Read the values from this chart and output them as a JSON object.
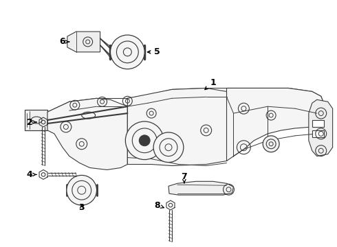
{
  "background_color": "#ffffff",
  "line_color": "#3a3a3a",
  "label_color": "#000000",
  "fig_width": 4.9,
  "fig_height": 3.6,
  "dpi": 100
}
